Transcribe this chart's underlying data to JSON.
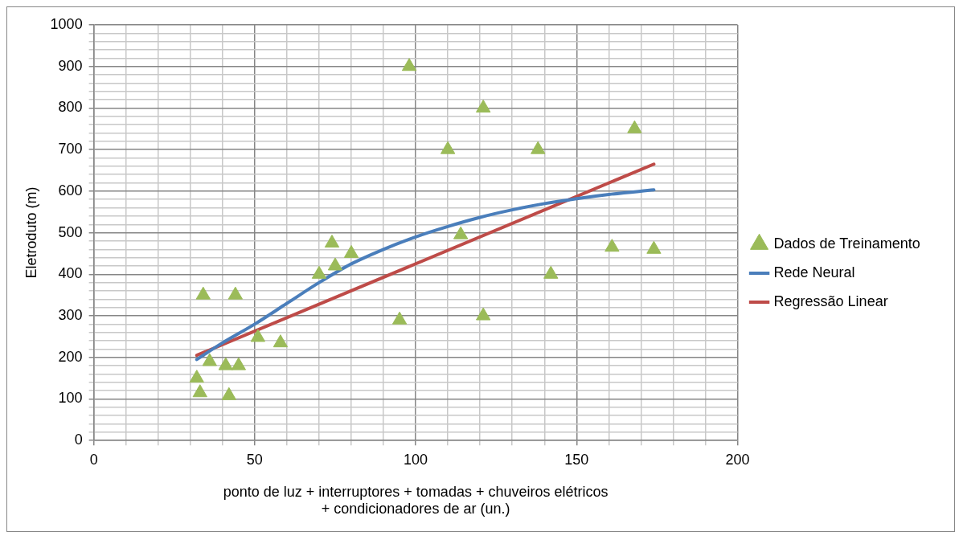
{
  "chart_data": {
    "type": "scatter",
    "xlabel": "ponto de luz + interruptores + tomadas + chuveiros elétricos + condicionadores de ar (un.)",
    "ylabel": "Eletroduto (m)",
    "xlim": [
      0,
      200
    ],
    "xticks": [
      0,
      {
        "value": 10,
        "label": null
      },
      {
        "value": 20,
        "label": null
      },
      {
        "value": 30,
        "label": null
      },
      {
        "value": 40,
        "label": null
      },
      50,
      {
        "value": 60,
        "label": null
      },
      {
        "value": 70,
        "label": null
      },
      {
        "value": 80,
        "label": null
      },
      {
        "value": 90,
        "label": null
      },
      100,
      {
        "value": 110,
        "label": null
      },
      {
        "value": 120,
        "label": null
      },
      {
        "value": 130,
        "label": null
      },
      {
        "value": 140,
        "label": null
      },
      150,
      {
        "value": 160,
        "label": null
      },
      {
        "value": 170,
        "label": null
      },
      {
        "value": 180,
        "label": null
      },
      {
        "value": 190,
        "label": null
      },
      200
    ],
    "ylim": [
      0,
      1000
    ],
    "yticks": [
      0,
      {
        "value": 20,
        "label": null
      },
      {
        "value": 40,
        "label": null
      },
      {
        "value": 60,
        "label": null
      },
      {
        "value": 80,
        "label": null
      },
      100,
      {
        "value": 120,
        "label": null
      },
      {
        "value": 140,
        "label": null
      },
      {
        "value": 160,
        "label": null
      },
      {
        "value": 180,
        "label": null
      },
      200,
      {
        "value": 220,
        "label": null
      },
      {
        "value": 240,
        "label": null
      },
      {
        "value": 260,
        "label": null
      },
      {
        "value": 280,
        "label": null
      },
      300,
      {
        "value": 320,
        "label": null
      },
      {
        "value": 340,
        "label": null
      },
      {
        "value": 360,
        "label": null
      },
      {
        "value": 380,
        "label": null
      },
      400,
      {
        "value": 420,
        "label": null
      },
      {
        "value": 440,
        "label": null
      },
      {
        "value": 460,
        "label": null
      },
      {
        "value": 480,
        "label": null
      },
      500,
      {
        "value": 520,
        "label": null
      },
      {
        "value": 540,
        "label": null
      },
      {
        "value": 560,
        "label": null
      },
      {
        "value": 580,
        "label": null
      },
      600,
      {
        "value": 620,
        "label": null
      },
      {
        "value": 640,
        "label": null
      },
      {
        "value": 660,
        "label": null
      },
      {
        "value": 680,
        "label": null
      },
      700,
      {
        "value": 720,
        "label": null
      },
      {
        "value": 740,
        "label": null
      },
      {
        "value": 760,
        "label": null
      },
      {
        "value": 780,
        "label": null
      },
      800,
      {
        "value": 820,
        "label": null
      },
      {
        "value": 840,
        "label": null
      },
      {
        "value": 860,
        "label": null
      },
      {
        "value": 880,
        "label": null
      },
      900,
      {
        "value": 920,
        "label": null
      },
      {
        "value": 940,
        "label": null
      },
      {
        "value": 960,
        "label": null
      },
      {
        "value": 980,
        "label": null
      },
      1000
    ],
    "grid": true,
    "legend": "right",
    "series": [
      {
        "name": "Dados de Treinamento",
        "type": "scatter",
        "marker": "triangle",
        "color": "#9bbb59",
        "x": [
          32,
          33,
          34,
          36,
          41,
          42,
          44,
          45,
          51,
          58,
          70,
          74,
          75,
          80,
          95,
          98,
          110,
          114,
          121,
          121,
          138,
          142,
          161,
          168,
          174
        ],
        "values": [
          150,
          115,
          350,
          190,
          180,
          108,
          350,
          180,
          248,
          235,
          400,
          475,
          420,
          450,
          290,
          900,
          700,
          495,
          800,
          300,
          700,
          400,
          465,
          750,
          460
        ]
      },
      {
        "name": "Rede Neural",
        "type": "line",
        "marker": "none",
        "color": "#4a7ebb",
        "x": [
          32,
          40,
          50,
          60,
          70,
          80,
          90,
          100,
          110,
          120,
          130,
          140,
          150,
          160,
          174
        ],
        "values": [
          195,
          235,
          280,
          330,
          380,
          425,
          460,
          490,
          515,
          537,
          555,
          570,
          582,
          592,
          603
        ]
      },
      {
        "name": "Regressão Linear",
        "type": "line",
        "marker": "none",
        "color": "#be4b48",
        "x": [
          32,
          174
        ],
        "values": [
          205,
          665
        ]
      }
    ]
  }
}
